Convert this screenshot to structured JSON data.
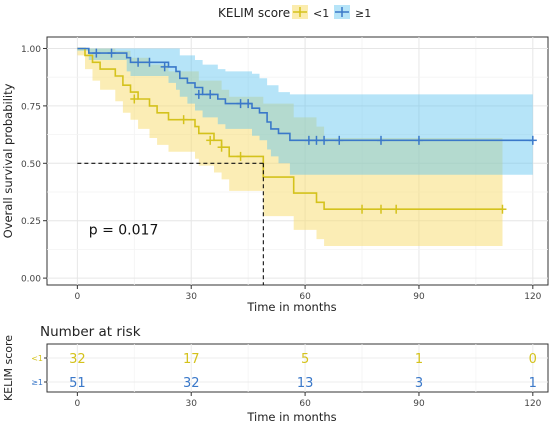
{
  "legend": {
    "title": "KELIM score",
    "items": [
      {
        "label": "<1",
        "color": "#d4c21c",
        "fill": "#f7dc6b"
      },
      {
        "label": "≥1",
        "color": "#3a78c9",
        "fill": "#5ec4f0"
      }
    ]
  },
  "chart_data": {
    "type": "line",
    "subtype": "kaplan-meier",
    "xlabel": "Time in months",
    "ylabel": "Overall survival probability",
    "xlim": [
      -8,
      124
    ],
    "ylim": [
      -0.03,
      1.05
    ],
    "xticks": [
      0,
      30,
      60,
      90,
      120
    ],
    "yticks": [
      0.0,
      0.25,
      0.5,
      0.75,
      1.0
    ],
    "ytick_labels": [
      "0.00",
      "0.25",
      "0.50",
      "0.75",
      "1.00"
    ],
    "grid": true,
    "legend_position": "top",
    "annotation": "p = 0.017",
    "annotation_position": {
      "x": 3,
      "y": 0.19
    },
    "median_line": {
      "y": 0.5,
      "x": 49
    },
    "series": [
      {
        "name": "<1",
        "color": "#d4c21c",
        "fill": "#f7dc6b",
        "steps": [
          [
            0,
            1.0
          ],
          [
            2,
            0.97
          ],
          [
            4,
            0.94
          ],
          [
            6,
            0.91
          ],
          [
            10,
            0.88
          ],
          [
            12,
            0.84
          ],
          [
            14,
            0.81
          ],
          [
            16,
            0.78
          ],
          [
            19,
            0.75
          ],
          [
            21,
            0.72
          ],
          [
            24,
            0.69
          ],
          [
            31,
            0.66
          ],
          [
            32,
            0.63
          ],
          [
            36,
            0.6
          ],
          [
            38,
            0.57
          ],
          [
            40,
            0.53
          ],
          [
            49,
            0.5
          ],
          [
            49,
            0.44
          ],
          [
            57,
            0.37
          ],
          [
            63,
            0.33
          ],
          [
            65,
            0.3
          ],
          [
            112,
            0.3
          ]
        ],
        "upper": [
          [
            0,
            1.0
          ],
          [
            2,
            1.0
          ],
          [
            6,
            1.0
          ],
          [
            10,
            0.99
          ],
          [
            14,
            0.96
          ],
          [
            19,
            0.93
          ],
          [
            24,
            0.9
          ],
          [
            32,
            0.86
          ],
          [
            38,
            0.82
          ],
          [
            40,
            0.79
          ],
          [
            49,
            0.76
          ],
          [
            57,
            0.7
          ],
          [
            63,
            0.66
          ],
          [
            65,
            0.61
          ],
          [
            112,
            0.61
          ]
        ],
        "lower": [
          [
            0,
            0.97
          ],
          [
            2,
            0.91
          ],
          [
            4,
            0.86
          ],
          [
            6,
            0.82
          ],
          [
            10,
            0.77
          ],
          [
            12,
            0.72
          ],
          [
            14,
            0.69
          ],
          [
            16,
            0.65
          ],
          [
            19,
            0.61
          ],
          [
            21,
            0.58
          ],
          [
            24,
            0.55
          ],
          [
            31,
            0.52
          ],
          [
            32,
            0.49
          ],
          [
            36,
            0.46
          ],
          [
            38,
            0.43
          ],
          [
            40,
            0.38
          ],
          [
            49,
            0.33
          ],
          [
            49,
            0.27
          ],
          [
            57,
            0.21
          ],
          [
            63,
            0.17
          ],
          [
            65,
            0.14
          ],
          [
            112,
            0.14
          ]
        ],
        "censored": [
          [
            15,
            0.78
          ],
          [
            28,
            0.69
          ],
          [
            35,
            0.6
          ],
          [
            38,
            0.57
          ],
          [
            43,
            0.53
          ],
          [
            75,
            0.3
          ],
          [
            80,
            0.3
          ],
          [
            84,
            0.3
          ],
          [
            112,
            0.3
          ]
        ]
      },
      {
        "name": "≥1",
        "color": "#3a78c9",
        "fill": "#5ec4f0",
        "steps": [
          [
            0,
            1.0
          ],
          [
            3,
            0.98
          ],
          [
            13,
            0.96
          ],
          [
            14,
            0.94
          ],
          [
            24,
            0.92
          ],
          [
            26,
            0.9
          ],
          [
            27,
            0.87
          ],
          [
            29,
            0.85
          ],
          [
            31,
            0.83
          ],
          [
            33,
            0.8
          ],
          [
            37,
            0.78
          ],
          [
            39,
            0.76
          ],
          [
            46,
            0.74
          ],
          [
            48,
            0.72
          ],
          [
            50,
            0.68
          ],
          [
            51,
            0.65
          ],
          [
            53,
            0.63
          ],
          [
            56,
            0.6
          ],
          [
            120,
            0.6
          ]
        ],
        "upper": [
          [
            0,
            1.0
          ],
          [
            3,
            1.0
          ],
          [
            13,
            1.0
          ],
          [
            24,
            1.0
          ],
          [
            27,
            0.97
          ],
          [
            31,
            0.95
          ],
          [
            33,
            0.93
          ],
          [
            37,
            0.91
          ],
          [
            39,
            0.9
          ],
          [
            46,
            0.89
          ],
          [
            48,
            0.87
          ],
          [
            50,
            0.84
          ],
          [
            53,
            0.81
          ],
          [
            56,
            0.8
          ],
          [
            120,
            0.8
          ]
        ],
        "lower": [
          [
            0,
            0.99
          ],
          [
            3,
            0.95
          ],
          [
            13,
            0.9
          ],
          [
            14,
            0.88
          ],
          [
            24,
            0.85
          ],
          [
            26,
            0.82
          ],
          [
            27,
            0.79
          ],
          [
            29,
            0.76
          ],
          [
            31,
            0.73
          ],
          [
            33,
            0.7
          ],
          [
            37,
            0.67
          ],
          [
            39,
            0.65
          ],
          [
            46,
            0.62
          ],
          [
            48,
            0.6
          ],
          [
            50,
            0.56
          ],
          [
            51,
            0.53
          ],
          [
            53,
            0.5
          ],
          [
            56,
            0.45
          ],
          [
            120,
            0.45
          ]
        ],
        "censored": [
          [
            5,
            0.98
          ],
          [
            9,
            0.98
          ],
          [
            16,
            0.94
          ],
          [
            19,
            0.94
          ],
          [
            23,
            0.92
          ],
          [
            32,
            0.8
          ],
          [
            35,
            0.8
          ],
          [
            43,
            0.76
          ],
          [
            45,
            0.76
          ],
          [
            61,
            0.6
          ],
          [
            63,
            0.6
          ],
          [
            65,
            0.6
          ],
          [
            69,
            0.6
          ],
          [
            80,
            0.6
          ],
          [
            90,
            0.6
          ],
          [
            120,
            0.6
          ]
        ]
      }
    ]
  },
  "risk_table": {
    "title": "Number at risk",
    "ylabel": "KELIM score",
    "xlabel": "Time in months",
    "times": [
      0,
      30,
      60,
      90,
      120
    ],
    "time_labels": [
      "0",
      "30",
      "60",
      "90",
      "120"
    ],
    "rows": [
      {
        "label": "<1",
        "color": "#d4c21c",
        "values": [
          "32",
          "17",
          "5",
          "1",
          "0"
        ]
      },
      {
        "label": "≥1",
        "color": "#3a78c9",
        "values": [
          "51",
          "32",
          "13",
          "3",
          "1"
        ]
      }
    ]
  }
}
